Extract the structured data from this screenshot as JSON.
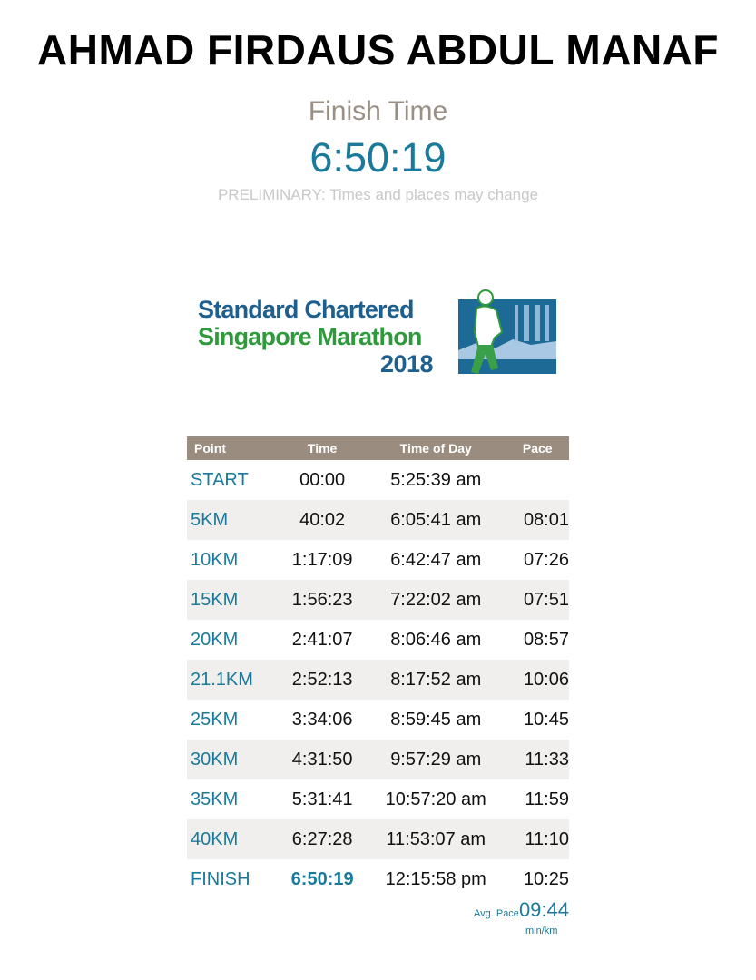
{
  "runner_name": "AHMAD FIRDAUS ABDUL MANAF",
  "finish_time_label": "Finish Time",
  "finish_time": "6:50:19",
  "preliminary_note": "PRELIMINARY: Times and places may change",
  "logo": {
    "line1": "Standard Chartered",
    "line2": "Singapore Marathon",
    "line3": "2018",
    "colors": {
      "blue": "#1e5f8e",
      "green": "#2f9a3c"
    }
  },
  "table": {
    "headers": [
      "Point",
      "Time",
      "Time of Day",
      "Pace"
    ],
    "rows": [
      {
        "point": "START",
        "time": "00:00",
        "tod": "5:25:39 am",
        "pace": ""
      },
      {
        "point": "5KM",
        "time": "40:02",
        "tod": "6:05:41 am",
        "pace": "08:01"
      },
      {
        "point": "10KM",
        "time": "1:17:09",
        "tod": "6:42:47 am",
        "pace": "07:26"
      },
      {
        "point": "15KM",
        "time": "1:56:23",
        "tod": "7:22:02 am",
        "pace": "07:51"
      },
      {
        "point": "20KM",
        "time": "2:41:07",
        "tod": "8:06:46 am",
        "pace": "08:57"
      },
      {
        "point": "21.1KM",
        "time": "2:52:13",
        "tod": "8:17:52 am",
        "pace": "10:06"
      },
      {
        "point": "25KM",
        "time": "3:34:06",
        "tod": "8:59:45 am",
        "pace": "10:45"
      },
      {
        "point": "30KM",
        "time": "4:31:50",
        "tod": "9:57:29 am",
        "pace": "11:33"
      },
      {
        "point": "35KM",
        "time": "5:31:41",
        "tod": "10:57:20 am",
        "pace": "11:59"
      },
      {
        "point": "40KM",
        "time": "6:27:28",
        "tod": "11:53:07 am",
        "pace": "11:10"
      },
      {
        "point": "FINISH",
        "time": "6:50:19",
        "tod": "12:15:58 pm",
        "pace": "10:25"
      }
    ]
  },
  "avg_pace_label": "Avg. Pace",
  "avg_pace": "09:44",
  "avg_pace_unit": "min/km",
  "colors": {
    "accent": "#1a7a9c",
    "header_bg": "#9a8d7f",
    "alt_row": "#f0efed"
  }
}
